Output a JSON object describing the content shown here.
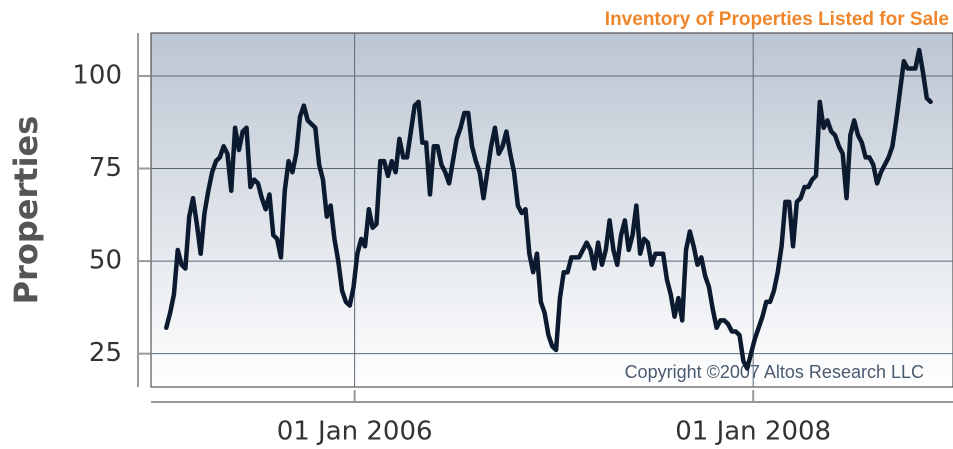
{
  "chart_data": {
    "type": "line",
    "title": "Inventory of Properties Listed for Sale",
    "y_label": "Properties",
    "annotation": "Copyright ©2007 Altos Research LLC",
    "x": [
      "2005-01-21",
      "2005-01-28",
      "2005-02-04",
      "2005-02-11",
      "2005-02-18",
      "2005-02-25",
      "2005-03-04",
      "2005-03-11",
      "2005-03-18",
      "2005-03-25",
      "2005-04-01",
      "2005-04-08",
      "2005-04-15",
      "2005-04-22",
      "2005-04-29",
      "2005-05-06",
      "2005-05-13",
      "2005-05-20",
      "2005-05-27",
      "2005-06-03",
      "2005-06-10",
      "2005-06-17",
      "2005-06-24",
      "2005-07-01",
      "2005-07-08",
      "2005-07-15",
      "2005-07-22",
      "2005-07-29",
      "2005-08-05",
      "2005-08-12",
      "2005-08-19",
      "2005-08-26",
      "2005-09-02",
      "2005-09-09",
      "2005-09-16",
      "2005-09-23",
      "2005-09-30",
      "2005-10-07",
      "2005-10-14",
      "2005-10-21",
      "2005-10-28",
      "2005-11-04",
      "2005-11-11",
      "2005-11-18",
      "2005-11-25",
      "2005-12-02",
      "2005-12-09",
      "2005-12-16",
      "2005-12-23",
      "2005-12-30",
      "2006-01-06",
      "2006-01-13",
      "2006-01-20",
      "2006-01-27",
      "2006-02-03",
      "2006-02-10",
      "2006-02-17",
      "2006-02-24",
      "2006-03-03",
      "2006-03-10",
      "2006-03-17",
      "2006-03-24",
      "2006-03-31",
      "2006-04-07",
      "2006-04-14",
      "2006-04-21",
      "2006-04-28",
      "2006-05-05",
      "2006-05-12",
      "2006-05-19",
      "2006-05-26",
      "2006-06-02",
      "2006-06-09",
      "2006-06-16",
      "2006-06-23",
      "2006-06-30",
      "2006-07-07",
      "2006-07-14",
      "2006-07-21",
      "2006-07-28",
      "2006-08-04",
      "2006-08-11",
      "2006-08-18",
      "2006-08-25",
      "2006-09-01",
      "2006-09-08",
      "2006-09-15",
      "2006-09-22",
      "2006-09-29",
      "2006-10-06",
      "2006-10-13",
      "2006-10-20",
      "2006-10-27",
      "2006-11-03",
      "2006-11-10",
      "2006-11-17",
      "2006-11-24",
      "2006-12-01",
      "2006-12-08",
      "2006-12-15",
      "2006-12-22",
      "2006-12-29",
      "2007-01-05",
      "2007-01-12",
      "2007-01-19",
      "2007-01-26",
      "2007-02-02",
      "2007-02-09",
      "2007-02-16",
      "2007-02-23",
      "2007-03-02",
      "2007-03-09",
      "2007-03-16",
      "2007-03-23",
      "2007-03-30",
      "2007-04-06",
      "2007-04-13",
      "2007-04-20",
      "2007-04-27",
      "2007-05-04",
      "2007-05-11",
      "2007-05-18",
      "2007-05-25",
      "2007-06-01",
      "2007-06-08",
      "2007-06-15",
      "2007-06-22",
      "2007-06-29",
      "2007-07-06",
      "2007-07-13",
      "2007-07-20",
      "2007-07-27",
      "2007-08-03",
      "2007-08-10",
      "2007-08-17",
      "2007-08-24",
      "2007-08-31",
      "2007-09-07",
      "2007-09-14",
      "2007-09-21",
      "2007-09-28",
      "2007-10-05",
      "2007-10-12",
      "2007-10-19",
      "2007-10-26",
      "2007-11-02",
      "2007-11-09",
      "2007-11-16",
      "2007-11-23",
      "2007-11-30",
      "2007-12-07",
      "2007-12-14",
      "2007-12-21",
      "2007-12-28",
      "2008-01-04",
      "2008-01-11",
      "2008-01-18",
      "2008-01-25",
      "2008-02-01",
      "2008-02-08",
      "2008-02-15",
      "2008-02-22",
      "2008-02-29",
      "2008-03-07",
      "2008-03-14",
      "2008-03-21",
      "2008-03-28",
      "2008-04-04",
      "2008-04-11",
      "2008-04-18",
      "2008-04-25",
      "2008-05-02",
      "2008-05-09",
      "2008-05-16",
      "2008-05-23",
      "2008-05-30",
      "2008-06-06",
      "2008-06-13",
      "2008-06-20",
      "2008-06-27",
      "2008-07-04",
      "2008-07-11",
      "2008-07-18",
      "2008-07-25",
      "2008-08-01",
      "2008-08-08",
      "2008-08-15",
      "2008-08-22",
      "2008-08-29",
      "2008-09-05",
      "2008-09-12",
      "2008-09-19",
      "2008-09-26",
      "2008-10-03",
      "2008-10-10",
      "2008-10-17",
      "2008-10-24",
      "2008-10-31",
      "2008-11-07",
      "2008-11-14",
      "2008-11-21"
    ],
    "values": [
      32,
      36,
      41,
      53,
      49,
      48,
      62,
      67,
      60,
      52,
      63,
      69,
      74,
      77,
      78,
      81,
      79,
      69,
      86,
      80,
      85,
      86,
      70,
      72,
      71,
      67,
      64,
      68,
      57,
      56,
      51,
      69,
      77,
      74,
      79,
      89,
      92,
      88,
      87,
      86,
      76,
      72,
      62,
      65,
      56,
      50,
      42,
      39,
      38,
      43,
      52,
      56,
      54,
      64,
      59,
      60,
      77,
      77,
      73,
      77,
      74,
      83,
      78,
      78,
      85,
      92,
      93,
      82,
      82,
      68,
      81,
      81,
      76,
      74,
      71,
      77,
      83,
      86,
      90,
      90,
      81,
      77,
      74,
      67,
      74,
      81,
      86,
      79,
      81,
      85,
      79,
      74,
      65,
      63,
      64,
      52,
      47,
      52,
      39,
      36,
      30,
      27,
      26,
      40,
      47,
      47,
      51,
      51,
      51,
      53,
      55,
      53,
      48,
      55,
      49,
      53,
      61,
      53,
      49,
      57,
      61,
      53,
      57,
      65,
      52,
      56,
      55,
      49,
      52,
      52,
      52,
      45,
      41,
      35,
      40,
      34,
      53,
      58,
      54,
      49,
      51,
      46,
      43,
      37,
      32,
      34,
      34,
      33,
      31,
      31,
      30,
      23,
      21,
      25,
      29,
      32,
      35,
      39,
      39,
      42,
      47,
      54,
      66,
      66,
      54,
      66,
      67,
      70,
      70,
      72,
      73,
      93,
      86,
      88,
      85,
      84,
      81,
      79,
      67,
      84,
      88,
      84,
      82,
      78,
      78,
      76,
      71,
      74,
      76,
      78,
      81,
      88,
      96,
      104,
      102,
      102,
      102,
      107,
      101,
      94,
      93
    ],
    "color": "#0b1a2e",
    "xlim": [
      "2004-12-24",
      "2009-01-01"
    ],
    "xticks": [
      {
        "value": "2006-01-01",
        "label": "01 Jan 2006"
      },
      {
        "value": "2008-01-01",
        "label": "01 Jan 2008"
      }
    ],
    "ylim": [
      16,
      111.6
    ],
    "yticks": [
      25,
      50,
      75,
      100
    ],
    "grid": true
  }
}
